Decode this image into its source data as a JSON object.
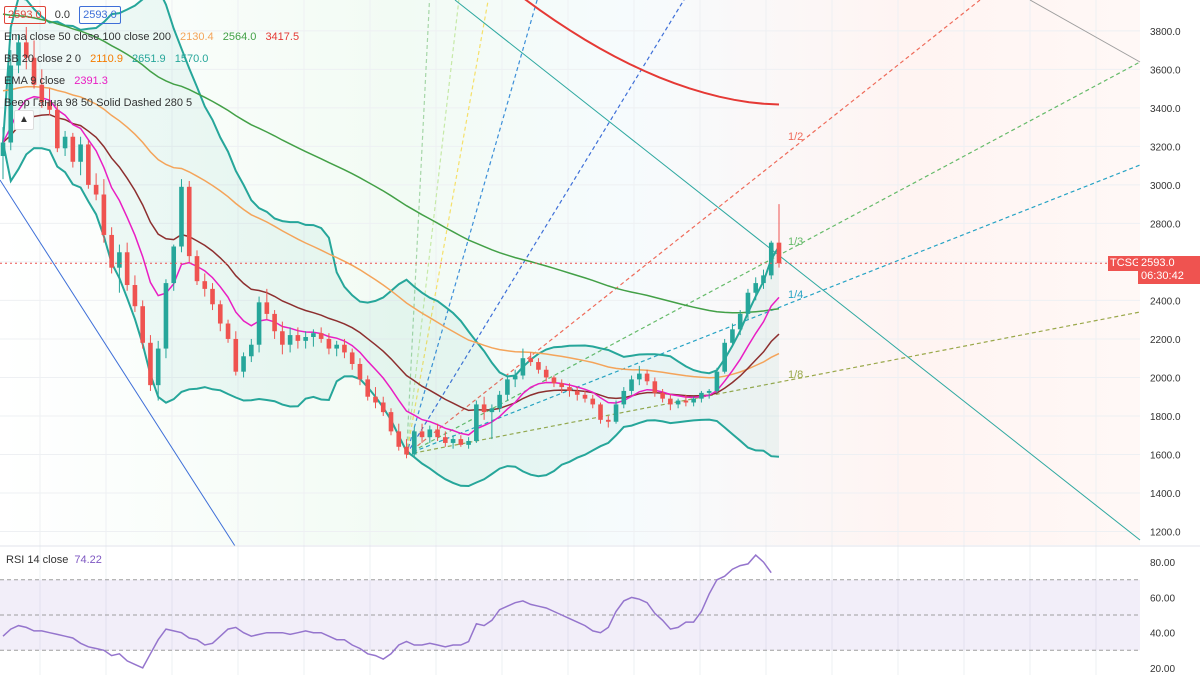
{
  "symbol": "TCSG",
  "legend": {
    "price_left": "2593.0",
    "change": "0.0",
    "price_right": "2593.0",
    "ema_name": "Ema close 50 close 100 close 200",
    "ema_values": [
      "2130.4",
      "2564.0",
      "3417.5"
    ],
    "bb_name": "BB 20 close 2 0",
    "bb_values": [
      "2110.9",
      "2651.9",
      "1570.0"
    ],
    "ema9_name": "EMA 9 close",
    "ema9_value": "2391.3",
    "gann_name": "Веер Ганна 98 50 Solid Dashed 280 5"
  },
  "price_tag": {
    "symbol": "TCSG",
    "price": "2593.0",
    "time": "06:30:42"
  },
  "rsi_legend": {
    "name": "RSI 14 close",
    "value": "74.22"
  },
  "colors": {
    "up": "#26a69a",
    "down": "#ef5350",
    "ema50": "#f4a45a",
    "ema100": "#43a047",
    "ema200": "#e53935",
    "bb": "#26a69a",
    "ema9": "#e91ec3",
    "rsi": "#9575cd",
    "brown": "#8d2f2f"
  },
  "chart_data": {
    "type": "candlestick",
    "title": "",
    "price_axis": {
      "ticks": [
        3800,
        3600,
        3400,
        3200,
        3000,
        2800,
        2600,
        2400,
        2200,
        2000,
        1800,
        1600,
        1400,
        1200
      ],
      "ylim": [
        1130,
        3960
      ]
    },
    "rsi_axis": {
      "ticks": [
        80,
        60,
        40,
        20
      ],
      "ylim": [
        16,
        88
      ],
      "bands": [
        70,
        50,
        30
      ]
    },
    "current_price": 2593.0,
    "gann_labels": [
      "1/2",
      "1/3",
      "1/4",
      "1/8"
    ],
    "candles": [
      [
        3150,
        3300,
        3030,
        3220
      ],
      [
        3220,
        3700,
        3180,
        3620
      ],
      [
        3620,
        3780,
        3580,
        3740
      ],
      [
        3740,
        3820,
        3600,
        3660
      ],
      [
        3660,
        3750,
        3500,
        3520
      ],
      [
        3520,
        3600,
        3400,
        3430
      ],
      [
        3430,
        3500,
        3360,
        3390
      ],
      [
        3390,
        3420,
        3170,
        3190
      ],
      [
        3190,
        3280,
        3150,
        3250
      ],
      [
        3250,
        3270,
        3090,
        3120
      ],
      [
        3120,
        3250,
        3050,
        3210
      ],
      [
        3210,
        3230,
        2980,
        3000
      ],
      [
        3000,
        3060,
        2920,
        2950
      ],
      [
        2950,
        3030,
        2700,
        2740
      ],
      [
        2740,
        2780,
        2540,
        2570
      ],
      [
        2570,
        2690,
        2440,
        2650
      ],
      [
        2650,
        2700,
        2450,
        2480
      ],
      [
        2480,
        2530,
        2340,
        2370
      ],
      [
        2370,
        2400,
        2150,
        2180
      ],
      [
        2180,
        2220,
        1930,
        1960
      ],
      [
        1960,
        2190,
        1880,
        2150
      ],
      [
        2150,
        2510,
        2100,
        2490
      ],
      [
        2490,
        2690,
        2450,
        2680
      ],
      [
        2680,
        3030,
        2650,
        2990
      ],
      [
        2990,
        3020,
        2600,
        2630
      ],
      [
        2630,
        2660,
        2480,
        2500
      ],
      [
        2500,
        2540,
        2420,
        2460
      ],
      [
        2460,
        2490,
        2350,
        2380
      ],
      [
        2380,
        2400,
        2240,
        2280
      ],
      [
        2280,
        2300,
        2180,
        2200
      ],
      [
        2200,
        2240,
        2010,
        2030
      ],
      [
        2030,
        2130,
        2000,
        2110
      ],
      [
        2110,
        2200,
        2080,
        2170
      ],
      [
        2170,
        2420,
        2130,
        2390
      ],
      [
        2390,
        2460,
        2300,
        2330
      ],
      [
        2330,
        2350,
        2200,
        2240
      ],
      [
        2240,
        2290,
        2120,
        2170
      ],
      [
        2170,
        2260,
        2130,
        2220
      ],
      [
        2220,
        2260,
        2150,
        2190
      ],
      [
        2190,
        2240,
        2150,
        2210
      ],
      [
        2210,
        2250,
        2160,
        2230
      ],
      [
        2230,
        2260,
        2180,
        2200
      ],
      [
        2200,
        2230,
        2120,
        2150
      ],
      [
        2150,
        2190,
        2110,
        2170
      ],
      [
        2170,
        2200,
        2100,
        2130
      ],
      [
        2130,
        2150,
        2040,
        2070
      ],
      [
        2070,
        2100,
        1960,
        1990
      ],
      [
        1990,
        2010,
        1880,
        1900
      ],
      [
        1900,
        1950,
        1840,
        1870
      ],
      [
        1870,
        1900,
        1800,
        1820
      ],
      [
        1820,
        1840,
        1700,
        1720
      ],
      [
        1720,
        1760,
        1620,
        1640
      ],
      [
        1640,
        1680,
        1580,
        1600
      ],
      [
        1600,
        1740,
        1590,
        1720
      ],
      [
        1720,
        1760,
        1660,
        1690
      ],
      [
        1690,
        1750,
        1660,
        1730
      ],
      [
        1730,
        1760,
        1670,
        1690
      ],
      [
        1690,
        1720,
        1640,
        1660
      ],
      [
        1660,
        1700,
        1630,
        1680
      ],
      [
        1680,
        1700,
        1640,
        1650
      ],
      [
        1650,
        1690,
        1630,
        1670
      ],
      [
        1670,
        1880,
        1660,
        1860
      ],
      [
        1860,
        1900,
        1780,
        1820
      ],
      [
        1820,
        1860,
        1680,
        1840
      ],
      [
        1840,
        1930,
        1820,
        1910
      ],
      [
        1910,
        2010,
        1880,
        1990
      ],
      [
        1990,
        2040,
        1950,
        2010
      ],
      [
        2010,
        2150,
        1990,
        2100
      ],
      [
        2100,
        2130,
        2060,
        2080
      ],
      [
        2080,
        2100,
        2020,
        2040
      ],
      [
        2040,
        2060,
        1980,
        2000
      ],
      [
        2000,
        2010,
        1950,
        1970
      ],
      [
        1970,
        1990,
        1920,
        1950
      ],
      [
        1950,
        1970,
        1900,
        1930
      ],
      [
        1930,
        1950,
        1880,
        1910
      ],
      [
        1910,
        1930,
        1870,
        1890
      ],
      [
        1890,
        1910,
        1840,
        1860
      ],
      [
        1860,
        1870,
        1760,
        1780
      ],
      [
        1780,
        1800,
        1740,
        1770
      ],
      [
        1770,
        1880,
        1760,
        1860
      ],
      [
        1860,
        1950,
        1840,
        1930
      ],
      [
        1930,
        2010,
        1910,
        1990
      ],
      [
        1990,
        2060,
        1960,
        2020
      ],
      [
        2020,
        2040,
        1960,
        1980
      ],
      [
        1980,
        2000,
        1900,
        1920
      ],
      [
        1920,
        1940,
        1870,
        1890
      ],
      [
        1890,
        1910,
        1830,
        1860
      ],
      [
        1860,
        1890,
        1840,
        1880
      ],
      [
        1880,
        1910,
        1850,
        1870
      ],
      [
        1870,
        1900,
        1850,
        1890
      ],
      [
        1890,
        1930,
        1870,
        1920
      ],
      [
        1920,
        1940,
        1890,
        1930
      ],
      [
        1930,
        2050,
        1920,
        2030
      ],
      [
        2030,
        2200,
        2020,
        2180
      ],
      [
        2180,
        2280,
        2160,
        2250
      ],
      [
        2250,
        2350,
        2220,
        2330
      ],
      [
        2330,
        2460,
        2300,
        2440
      ],
      [
        2440,
        2520,
        2400,
        2490
      ],
      [
        2490,
        2560,
        2460,
        2530
      ],
      [
        2530,
        2710,
        2510,
        2700
      ],
      [
        2700,
        2900,
        2570,
        2593
      ]
    ],
    "rsi": [
      38,
      42,
      44,
      43,
      41,
      41,
      40,
      39,
      38,
      37,
      34,
      32,
      31,
      30,
      27,
      28,
      24,
      22,
      20,
      28,
      36,
      42,
      41,
      40,
      37,
      36,
      33,
      34,
      38,
      42,
      43,
      40,
      38,
      39,
      40,
      40,
      40,
      39,
      40,
      41,
      40,
      40,
      38,
      36,
      36,
      33,
      31,
      28,
      27,
      25,
      28,
      33,
      35,
      33,
      33,
      34,
      33,
      32,
      33,
      33,
      35,
      45,
      44,
      47,
      53,
      55,
      57,
      58,
      56,
      55,
      54,
      52,
      50,
      48,
      46,
      44,
      41,
      40,
      43,
      52,
      58,
      60,
      59,
      57,
      51,
      47,
      42,
      43,
      46,
      46,
      52,
      62,
      70,
      72,
      76,
      78,
      79,
      84,
      80,
      74
    ]
  }
}
